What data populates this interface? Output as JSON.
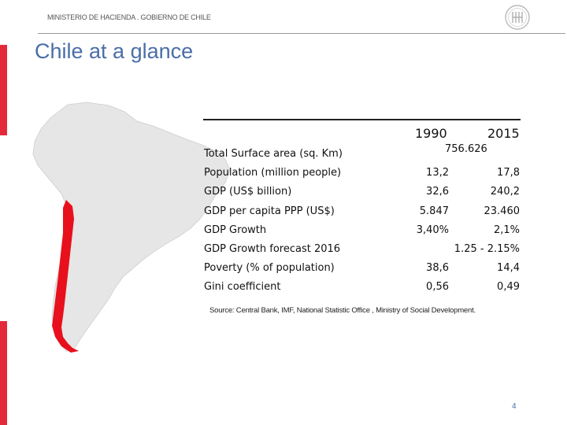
{
  "header": {
    "text": "MINISTERIO DE HACIENDA . GOBIERNO DE CHILE"
  },
  "slide": {
    "title": "Chile at a glance",
    "page_number": "4",
    "source": "Source: Central Bank, IMF, National Statistic Office , Ministry of Social Development."
  },
  "table": {
    "columns": [
      "1990",
      "2015"
    ],
    "rows": [
      {
        "label": "Total Surface area (sq. Km)",
        "merged": "756.626"
      },
      {
        "label": "Population (million people)",
        "v1990": "13,2",
        "v2015": "17,8"
      },
      {
        "label": "GDP (US$ billion)",
        "v1990": "32,6",
        "v2015": "240,2"
      },
      {
        "label": "GDP per capita PPP (US$)",
        "v1990": "5.847",
        "v2015": "23.460"
      },
      {
        "label": "GDP Growth",
        "v1990": "3,40%",
        "v2015": "2,1%"
      },
      {
        "label": "GDP Growth forecast 2016",
        "v2015": "1.25 - 2.15%"
      },
      {
        "label": "Poverty (% of population)",
        "v1990": "38,6",
        "v2015": "14,4"
      },
      {
        "label": "Gini coefficient",
        "v1990": "0,56",
        "v2015": "0,49"
      }
    ]
  },
  "colors": {
    "accent": "#e32a3b",
    "title": "#4a6ea8",
    "chile": "#e8101c",
    "continent": "#e6e6e6"
  },
  "icons": {
    "logo": "ministry-seal-icon"
  }
}
